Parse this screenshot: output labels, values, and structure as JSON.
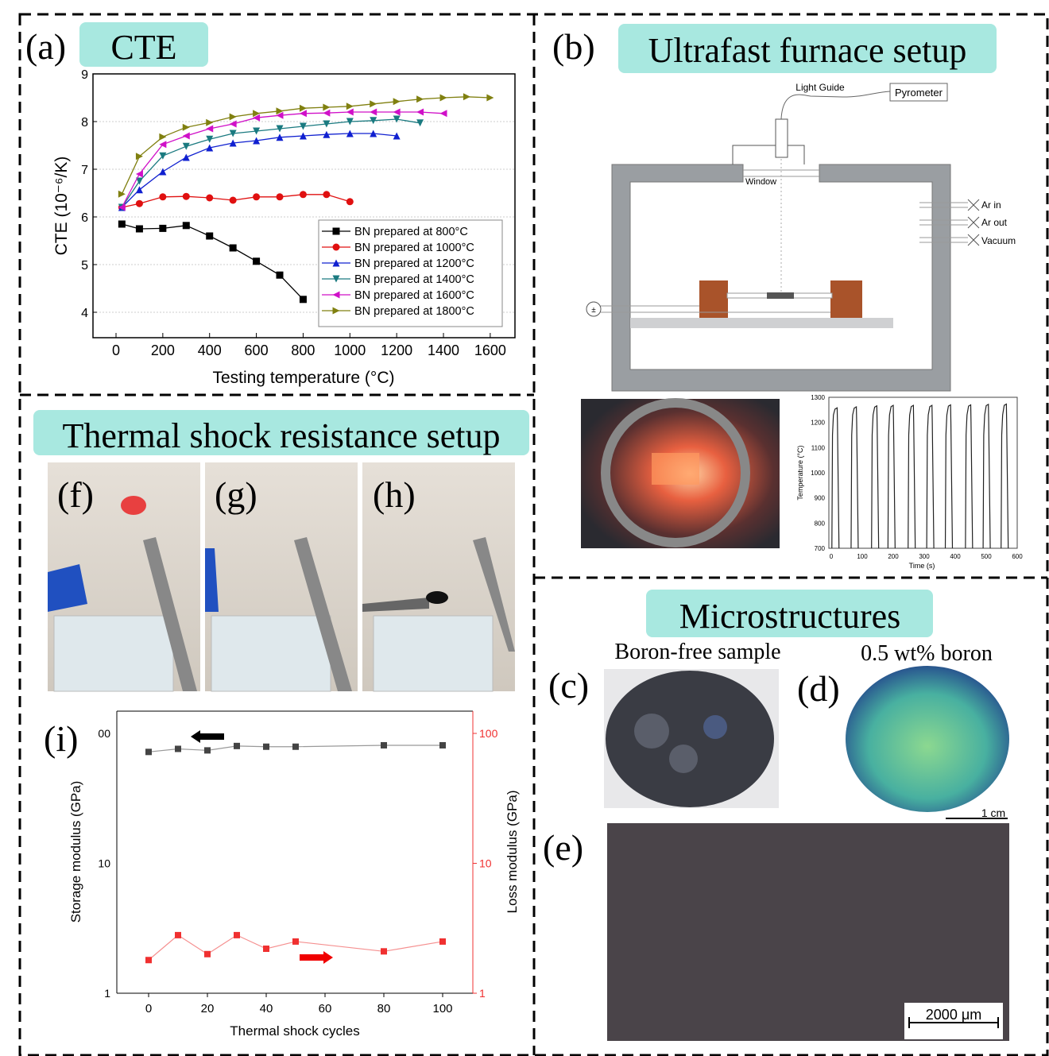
{
  "panels": {
    "a": {
      "letter": "(a)",
      "title": "CTE"
    },
    "b": {
      "letter": "(b)",
      "title": "Ultrafast furnace setup",
      "diagram": {
        "light_guide": "Light Guide",
        "pyrometer": "Pyrometer",
        "window": "Window",
        "ar_in": "Ar in",
        "ar_out": "Ar out",
        "vacuum": "Vacuum"
      }
    },
    "thermal": {
      "title": "Thermal shock resistance setup",
      "f": "(f)",
      "g": "(g)",
      "h": "(h)",
      "i": "(i)"
    },
    "micro": {
      "title": "Microstructures",
      "c": "(c)",
      "d": "(d)",
      "e": "(e)",
      "c_caption": "Boron-free sample",
      "d_caption": "0.5 wt% boron",
      "scale_1": "1 cm",
      "scale_2": "2000 μm"
    }
  },
  "colors": {
    "title_bg": "#a8e8e0",
    "furnace_wall": "#9a9ea2",
    "electrode": "#a9532a"
  },
  "chart_data": [
    {
      "type": "line",
      "xlabel": "Testing temperature (°C)",
      "ylabel": "CTE (10⁻⁶/K)",
      "xlim": [
        -100,
        1700
      ],
      "ylim": [
        3.46,
        9
      ],
      "xticks": [
        0,
        200,
        400,
        600,
        800,
        1000,
        1200,
        1400,
        1600
      ],
      "yticks": [
        4,
        5,
        6,
        7,
        8,
        9
      ],
      "grid": true,
      "legend": "bottom-right",
      "series": [
        {
          "name": "BN prepared at 800°C",
          "color": "#000000",
          "marker": "square",
          "x": [
            25,
            100,
            200,
            300,
            400,
            500,
            600,
            700,
            800
          ],
          "y": [
            5.85,
            5.75,
            5.76,
            5.82,
            5.6,
            5.35,
            5.07,
            4.78,
            4.27
          ]
        },
        {
          "name": "BN prepared at 1000°C",
          "color": "#e01010",
          "marker": "circle",
          "x": [
            25,
            100,
            200,
            300,
            400,
            500,
            600,
            700,
            800,
            900,
            1000
          ],
          "y": [
            6.2,
            6.28,
            6.42,
            6.43,
            6.4,
            6.35,
            6.42,
            6.42,
            6.47,
            6.47,
            6.32
          ]
        },
        {
          "name": "BN prepared at 1200°C",
          "color": "#1020d0",
          "marker": "triangle-up",
          "x": [
            25,
            100,
            200,
            300,
            400,
            500,
            600,
            700,
            800,
            900,
            1000,
            1100,
            1200
          ],
          "y": [
            6.2,
            6.57,
            6.95,
            7.25,
            7.45,
            7.55,
            7.6,
            7.67,
            7.7,
            7.73,
            7.75,
            7.75,
            7.7
          ]
        },
        {
          "name": "BN prepared at 1400°C",
          "color": "#1a7a80",
          "marker": "triangle-down",
          "x": [
            25,
            100,
            200,
            300,
            400,
            500,
            600,
            700,
            800,
            900,
            1000,
            1100,
            1200,
            1300
          ],
          "y": [
            6.2,
            6.75,
            7.28,
            7.48,
            7.63,
            7.75,
            7.8,
            7.85,
            7.9,
            7.95,
            8.0,
            8.02,
            8.05,
            7.97
          ]
        },
        {
          "name": "BN prepared at 1600°C",
          "color": "#d010c8",
          "marker": "triangle-left",
          "x": [
            25,
            100,
            200,
            300,
            400,
            500,
            600,
            700,
            800,
            900,
            1000,
            1100,
            1200,
            1300,
            1400
          ],
          "y": [
            6.2,
            6.9,
            7.52,
            7.7,
            7.85,
            7.95,
            8.08,
            8.13,
            8.17,
            8.18,
            8.2,
            8.2,
            8.2,
            8.2,
            8.17
          ]
        },
        {
          "name": "BN prepared at 1800°C",
          "color": "#808010",
          "marker": "triangle-right",
          "x": [
            25,
            100,
            200,
            300,
            400,
            500,
            600,
            700,
            800,
            900,
            1000,
            1100,
            1200,
            1300,
            1400,
            1500,
            1600
          ],
          "y": [
            6.48,
            7.27,
            7.68,
            7.88,
            7.98,
            8.1,
            8.17,
            8.22,
            8.28,
            8.3,
            8.32,
            8.37,
            8.42,
            8.47,
            8.5,
            8.52,
            8.5
          ]
        }
      ]
    },
    {
      "type": "line",
      "xlabel": "Time (s)",
      "ylabel": "Temperature (°C)",
      "xlim": [
        0,
        600
      ],
      "ylim": [
        700,
        1300
      ],
      "xticks": [
        0,
        100,
        200,
        300,
        400,
        500,
        600
      ],
      "yticks": [
        700,
        800,
        900,
        1000,
        1100,
        1200,
        1300
      ],
      "series": [
        {
          "cycle_start_s": [
            2,
            64,
            130,
            183,
            248,
            308,
            368,
            433,
            490,
            548
          ],
          "peak_c": [
            1258,
            1262,
            1266,
            1268,
            1268,
            1268,
            1270,
            1270,
            1272,
            1273
          ]
        }
      ]
    },
    {
      "type": "line",
      "xlabel": "Thermal shock cycles",
      "ylabel": "Storage modulus (GPa)",
      "ylabel_right": "Loss modulus (GPa)",
      "xlim": [
        -10,
        110
      ],
      "ylim": [
        1,
        100
      ],
      "yscale": "log",
      "xticks": [
        0,
        20,
        40,
        60,
        80,
        100
      ],
      "yticks": [
        "1",
        "10",
        "00"
      ],
      "yticks_right": [
        "1",
        "10",
        "100"
      ],
      "series": [
        {
          "axis": "left",
          "color": "#444444",
          "x": [
            0,
            10,
            20,
            30,
            40,
            50,
            80,
            100
          ],
          "y": [
            72,
            76,
            74,
            80,
            79,
            79,
            81,
            81
          ]
        },
        {
          "axis": "right",
          "color": "#f03030",
          "x": [
            0,
            10,
            20,
            30,
            40,
            50,
            80,
            100
          ],
          "y": [
            1.8,
            2.8,
            2.0,
            2.8,
            2.2,
            2.5,
            2.1,
            2.5
          ]
        }
      ]
    }
  ]
}
